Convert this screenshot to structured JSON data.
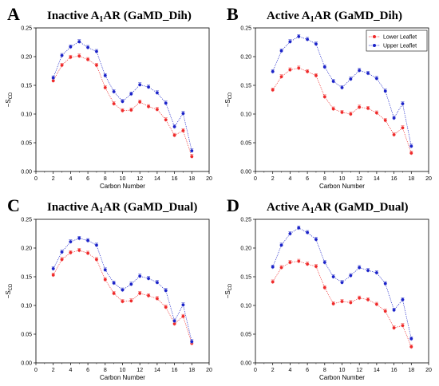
{
  "colors": {
    "lower": "#ef2a2a",
    "upper": "#1a22c8",
    "axis": "#000000"
  },
  "legend": {
    "lower": "Lower Leaflet",
    "upper": "Upper Leaflet",
    "placement": "top-right of panel B"
  },
  "chart_data": [
    {
      "letter": "A",
      "title_main": "Inactive A",
      "title_sub": "1",
      "title_rest": "AR (GaMD_Dih)",
      "type": "line",
      "xlabel": "Carbon Number",
      "ylabel": "−S_CD",
      "xlim": [
        0,
        20
      ],
      "ylim": [
        0,
        0.25
      ],
      "xticks": [
        0,
        2,
        4,
        6,
        8,
        10,
        12,
        14,
        16,
        18,
        20
      ],
      "yticks": [
        0.0,
        0.05,
        0.1,
        0.15,
        0.2,
        0.25
      ],
      "x": [
        2,
        3,
        4,
        5,
        6,
        7,
        8,
        9,
        10,
        11,
        12,
        13,
        14,
        15,
        16,
        17,
        18
      ],
      "series": [
        {
          "name": "Lower Leaflet",
          "key": "lower",
          "values": [
            0.158,
            0.185,
            0.199,
            0.201,
            0.195,
            0.185,
            0.146,
            0.118,
            0.106,
            0.107,
            0.121,
            0.113,
            0.108,
            0.09,
            0.063,
            0.071,
            0.026
          ]
        },
        {
          "name": "Upper Leaflet",
          "key": "upper",
          "values": [
            0.163,
            0.202,
            0.217,
            0.226,
            0.216,
            0.209,
            0.167,
            0.139,
            0.122,
            0.135,
            0.151,
            0.147,
            0.137,
            0.119,
            0.078,
            0.101,
            0.036
          ]
        }
      ]
    },
    {
      "letter": "B",
      "title_main": "Active A",
      "title_sub": "1",
      "title_rest": "AR (GaMD_Dih)",
      "type": "line",
      "xlabel": "Carbon Number",
      "ylabel": "−S_CD",
      "xlim": [
        0,
        20
      ],
      "ylim": [
        0,
        0.25
      ],
      "xticks": [
        0,
        2,
        4,
        6,
        8,
        10,
        12,
        14,
        16,
        18,
        20
      ],
      "yticks": [
        0.0,
        0.05,
        0.1,
        0.15,
        0.2,
        0.25
      ],
      "x": [
        2,
        3,
        4,
        5,
        6,
        7,
        8,
        9,
        10,
        11,
        12,
        13,
        14,
        15,
        16,
        17,
        18
      ],
      "series": [
        {
          "name": "Lower Leaflet",
          "key": "lower",
          "values": [
            0.142,
            0.165,
            0.177,
            0.18,
            0.174,
            0.167,
            0.13,
            0.109,
            0.103,
            0.1,
            0.112,
            0.11,
            0.102,
            0.089,
            0.064,
            0.076,
            0.032
          ]
        },
        {
          "name": "Upper Leaflet",
          "key": "upper",
          "values": [
            0.174,
            0.21,
            0.226,
            0.235,
            0.23,
            0.222,
            0.182,
            0.157,
            0.146,
            0.161,
            0.176,
            0.171,
            0.162,
            0.14,
            0.093,
            0.118,
            0.044
          ]
        }
      ]
    },
    {
      "letter": "C",
      "title_main": "Inactive A",
      "title_sub": "1",
      "title_rest": "AR (GaMD_Dual)",
      "type": "line",
      "xlabel": "Carbon Number",
      "ylabel": "−S_CD",
      "xlim": [
        0,
        20
      ],
      "ylim": [
        0,
        0.25
      ],
      "xticks": [
        0,
        2,
        4,
        6,
        8,
        10,
        12,
        14,
        16,
        18,
        20
      ],
      "yticks": [
        0.0,
        0.05,
        0.1,
        0.15,
        0.2,
        0.25
      ],
      "x": [
        2,
        3,
        4,
        5,
        6,
        7,
        8,
        9,
        10,
        11,
        12,
        13,
        14,
        15,
        16,
        17,
        18
      ],
      "series": [
        {
          "name": "Lower Leaflet",
          "key": "lower",
          "values": [
            0.153,
            0.18,
            0.192,
            0.196,
            0.191,
            0.18,
            0.145,
            0.121,
            0.107,
            0.108,
            0.121,
            0.117,
            0.112,
            0.097,
            0.068,
            0.081,
            0.034
          ]
        },
        {
          "name": "Upper Leaflet",
          "key": "upper",
          "values": [
            0.164,
            0.193,
            0.211,
            0.217,
            0.213,
            0.205,
            0.162,
            0.139,
            0.127,
            0.137,
            0.151,
            0.147,
            0.14,
            0.126,
            0.073,
            0.101,
            0.037
          ]
        }
      ]
    },
    {
      "letter": "D",
      "title_main": "Active A",
      "title_sub": "1",
      "title_rest": "AR (GaMD_Dual)",
      "type": "line",
      "xlabel": "Carbon Number",
      "ylabel": "−S_CD",
      "xlim": [
        0,
        20
      ],
      "ylim": [
        0,
        0.25
      ],
      "xticks": [
        0,
        2,
        4,
        6,
        8,
        10,
        12,
        14,
        16,
        18,
        20
      ],
      "yticks": [
        0.0,
        0.05,
        0.1,
        0.15,
        0.2,
        0.25
      ],
      "x": [
        2,
        3,
        4,
        5,
        6,
        7,
        8,
        9,
        10,
        11,
        12,
        13,
        14,
        15,
        16,
        17,
        18
      ],
      "series": [
        {
          "name": "Lower Leaflet",
          "key": "lower",
          "values": [
            0.141,
            0.166,
            0.175,
            0.177,
            0.172,
            0.168,
            0.131,
            0.103,
            0.107,
            0.105,
            0.113,
            0.11,
            0.102,
            0.09,
            0.061,
            0.065,
            0.028
          ]
        },
        {
          "name": "Upper Leaflet",
          "key": "upper",
          "values": [
            0.167,
            0.205,
            0.225,
            0.235,
            0.227,
            0.215,
            0.175,
            0.15,
            0.14,
            0.152,
            0.166,
            0.161,
            0.157,
            0.138,
            0.092,
            0.11,
            0.042
          ]
        }
      ]
    }
  ]
}
